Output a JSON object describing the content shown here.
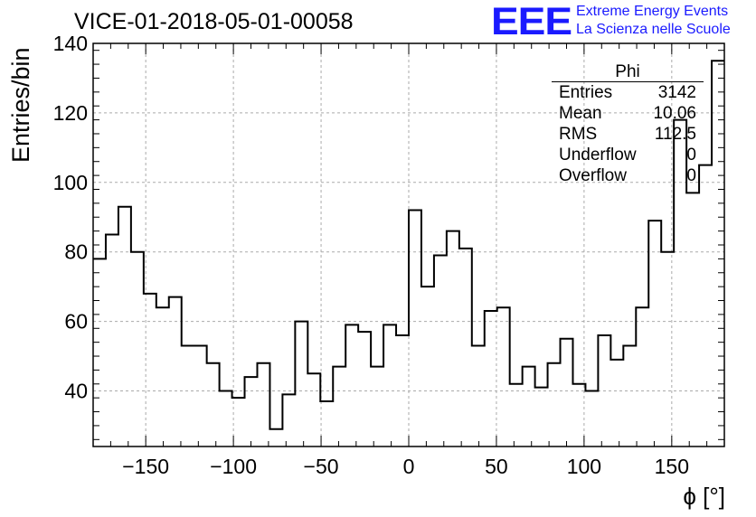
{
  "title": "VICE-01-2018-05-01-00058",
  "branding": {
    "logo": "EEE",
    "line1": "Extreme Energy Events",
    "line2": "La Scienza nelle Scuole"
  },
  "stats": {
    "name": "Phi",
    "rows": [
      {
        "key": "Entries",
        "value": "3142"
      },
      {
        "key": "Mean",
        "value": "10.06"
      },
      {
        "key": "RMS",
        "value": "112.5"
      },
      {
        "key": "Underflow",
        "value": "0"
      },
      {
        "key": "Overflow",
        "value": "0"
      }
    ]
  },
  "chart_data": {
    "type": "bar",
    "title": "VICE-01-2018-05-01-00058",
    "xlabel": "ϕ [°]",
    "ylabel": "Entries/bin",
    "xlim": [
      -180,
      180
    ],
    "ylim": [
      24,
      140
    ],
    "bin_width": 7.2,
    "x_ticks": [
      -150,
      -100,
      -50,
      0,
      50,
      100,
      150
    ],
    "x_tick_labels": [
      "−150",
      "−100",
      "−50",
      "0",
      "50",
      "100",
      "150"
    ],
    "y_ticks": [
      40,
      60,
      80,
      100,
      120,
      140
    ],
    "grid": true,
    "values": [
      78,
      85,
      93,
      80,
      68,
      64,
      67,
      53,
      53,
      48,
      40,
      38,
      44,
      48,
      29,
      39,
      60,
      45,
      37,
      47,
      59,
      57,
      47,
      59,
      56,
      92,
      70,
      79,
      86,
      81,
      53,
      63,
      64,
      42,
      47,
      41,
      48,
      55,
      42,
      40,
      56,
      49,
      53,
      64,
      89,
      80,
      118,
      97,
      105,
      135
    ],
    "line_color": "#000000"
  }
}
